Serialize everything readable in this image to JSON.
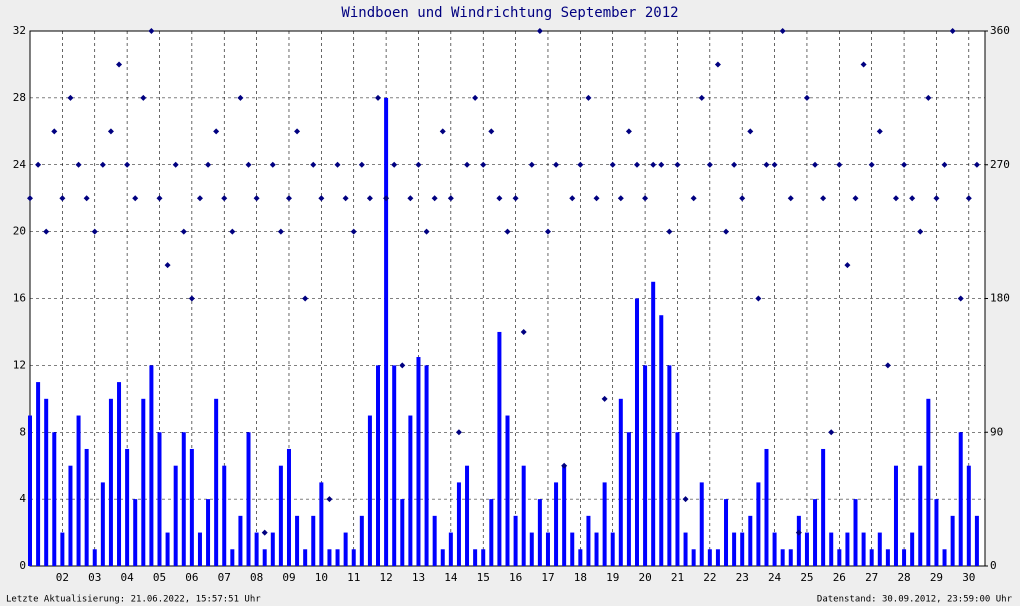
{
  "chart_data": {
    "type": "gust-direction",
    "title": "Windboen und Windrichtung September 2012",
    "footer_left": "Letzte Aktualisierung: 21.06.2022, 15:57:51 Uhr",
    "footer_right": "Datenstand: 30.09.2012, 23:59:00 Uhr",
    "xlim": [
      1,
      30.5
    ],
    "xticks": [
      {
        "value": 2,
        "label": "02"
      },
      {
        "value": 3,
        "label": "03"
      },
      {
        "value": 4,
        "label": "04"
      },
      {
        "value": 5,
        "label": "05"
      },
      {
        "value": 6,
        "label": "06"
      },
      {
        "value": 7,
        "label": "07"
      },
      {
        "value": 8,
        "label": "08"
      },
      {
        "value": 9,
        "label": "09"
      },
      {
        "value": 10,
        "label": "10"
      },
      {
        "value": 11,
        "label": "11"
      },
      {
        "value": 12,
        "label": "12"
      },
      {
        "value": 13,
        "label": "13"
      },
      {
        "value": 14,
        "label": "14"
      },
      {
        "value": 15,
        "label": "15"
      },
      {
        "value": 16,
        "label": "16"
      },
      {
        "value": 17,
        "label": "17"
      },
      {
        "value": 18,
        "label": "18"
      },
      {
        "value": 19,
        "label": "19"
      },
      {
        "value": 20,
        "label": "20"
      },
      {
        "value": 21,
        "label": "21"
      },
      {
        "value": 22,
        "label": "22"
      },
      {
        "value": 23,
        "label": "23"
      },
      {
        "value": 24,
        "label": "24"
      },
      {
        "value": 25,
        "label": "25"
      },
      {
        "value": 26,
        "label": "26"
      },
      {
        "value": 27,
        "label": "27"
      },
      {
        "value": 28,
        "label": "28"
      },
      {
        "value": 29,
        "label": "29"
      },
      {
        "value": 30,
        "label": "30"
      }
    ],
    "ylim": [
      0,
      32
    ],
    "yticks": [
      0,
      4,
      8,
      12,
      16,
      20,
      24,
      28,
      32
    ],
    "y2lim": [
      0,
      360
    ],
    "y2ticks": [
      0,
      90,
      180,
      270,
      360
    ],
    "grid": true,
    "x": [
      1,
      1.25,
      1.5,
      1.75,
      2,
      2.25,
      2.5,
      2.75,
      3,
      3.25,
      3.5,
      3.75,
      4,
      4.25,
      4.5,
      4.75,
      5,
      5.25,
      5.5,
      5.75,
      6,
      6.25,
      6.5,
      6.75,
      7,
      7.25,
      7.5,
      7.75,
      8,
      8.25,
      8.5,
      8.75,
      9,
      9.25,
      9.5,
      9.75,
      10,
      10.25,
      10.5,
      10.75,
      11,
      11.25,
      11.5,
      11.75,
      12,
      12.25,
      12.5,
      12.75,
      13,
      13.25,
      13.5,
      13.75,
      14,
      14.25,
      14.5,
      14.75,
      15,
      15.25,
      15.5,
      15.75,
      16,
      16.25,
      16.5,
      16.75,
      17,
      17.25,
      17.5,
      17.75,
      18,
      18.25,
      18.5,
      18.75,
      19,
      19.25,
      19.5,
      19.75,
      20,
      20.25,
      20.5,
      20.75,
      21,
      21.25,
      21.5,
      21.75,
      22,
      22.25,
      22.5,
      22.75,
      23,
      23.25,
      23.5,
      23.75,
      24,
      24.25,
      24.5,
      24.75,
      25,
      25.25,
      25.5,
      25.75,
      26,
      26.25,
      26.5,
      26.75,
      27,
      27.25,
      27.5,
      27.75,
      28,
      28.25,
      28.5,
      28.75,
      29,
      29.25,
      29.5,
      29.75,
      30,
      30.25
    ],
    "series": [
      {
        "kind": "bar",
        "color": "#0000ff",
        "values": [
          9,
          11,
          10,
          8,
          2,
          6,
          9,
          7,
          1,
          5,
          10,
          11,
          7,
          4,
          10,
          12,
          8,
          2,
          6,
          8,
          7,
          2,
          4,
          10,
          6,
          1,
          3,
          8,
          2,
          1,
          2,
          6,
          7,
          3,
          1,
          3,
          5,
          1,
          1,
          2,
          1,
          3,
          9,
          12,
          28,
          12,
          4,
          9,
          12.5,
          12,
          3,
          1,
          2,
          5,
          6,
          1,
          1,
          4,
          14,
          9,
          3,
          6,
          2,
          4,
          2,
          5,
          6,
          2,
          1,
          3,
          2,
          5,
          2,
          10,
          8,
          16,
          12,
          17,
          15,
          12,
          8,
          2,
          1,
          5,
          1,
          1,
          4,
          2,
          2,
          3,
          5,
          7,
          2,
          1,
          1,
          3,
          2,
          4,
          7,
          2,
          1,
          2,
          4,
          2,
          1,
          2,
          1,
          6,
          1,
          2,
          6,
          10,
          4,
          1,
          3,
          8,
          6,
          3
        ]
      },
      {
        "kind": "dot",
        "color": "#000080",
        "axis": "y2",
        "values": [
          247.5,
          270,
          225,
          292.5,
          247.5,
          315,
          270,
          247.5,
          225,
          270,
          292.5,
          337.5,
          270,
          247.5,
          315,
          360,
          247.5,
          202.5,
          270,
          225,
          180,
          247.5,
          270,
          292.5,
          247.5,
          225,
          315,
          270,
          247.5,
          22.5,
          270,
          225,
          247.5,
          292.5,
          180,
          270,
          247.5,
          45,
          270,
          247.5,
          225,
          270,
          247.5,
          315,
          247.5,
          270,
          135,
          247.5,
          270,
          225,
          247.5,
          292.5,
          247.5,
          90,
          270,
          315,
          270,
          292.5,
          247.5,
          225,
          247.5,
          157.5,
          270,
          360,
          225,
          270,
          67.5,
          247.5,
          270,
          315,
          247.5,
          112.5,
          270,
          247.5,
          292.5,
          270,
          247.5,
          270,
          270,
          225,
          270,
          45,
          247.5,
          315,
          270,
          337.5,
          225,
          270,
          247.5,
          292.5,
          180,
          270,
          270,
          360,
          247.5,
          22.5,
          315,
          270,
          247.5,
          90,
          270,
          202.5,
          247.5,
          337.5,
          270,
          292.5,
          135,
          247.5,
          270,
          247.5,
          225,
          315,
          247.5,
          270,
          360,
          180,
          247.5,
          270
        ]
      }
    ]
  }
}
